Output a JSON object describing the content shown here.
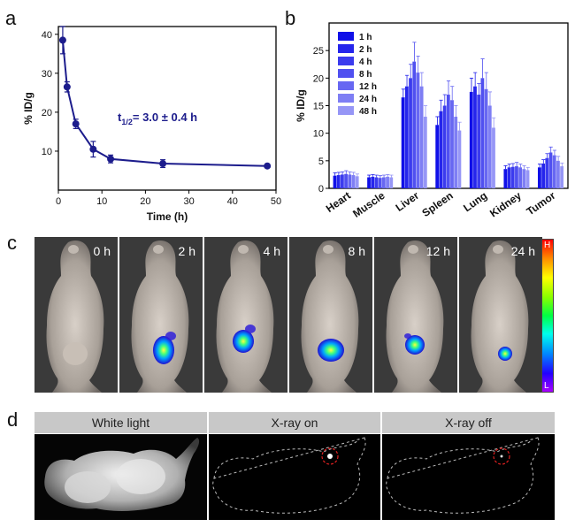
{
  "panels": {
    "a": "a",
    "b": "b",
    "c": "c",
    "d": "d"
  },
  "chart_data": [
    {
      "type": "line",
      "x": [
        1,
        2,
        4,
        8,
        12,
        24,
        48
      ],
      "series": [
        {
          "values": [
            38.5,
            26.5,
            17.0,
            10.5,
            8.0,
            6.8,
            6.2
          ],
          "error": [
            3.5,
            1.3,
            1.2,
            2.0,
            1.0,
            1.0,
            0.4
          ]
        }
      ],
      "annotation_main": "t",
      "annotation_sub": "1/2",
      "annotation_rest": "= 3.0 ± 0.4 h",
      "xlabel": "Time (h)",
      "ylabel": "% ID/g",
      "xlim": [
        0,
        50
      ],
      "ylim": [
        0,
        42
      ],
      "xticks": [
        0,
        10,
        20,
        30,
        40,
        50
      ],
      "yticks": [
        10,
        20,
        30,
        40
      ],
      "color": "#1c1c8c"
    },
    {
      "type": "bar",
      "categories": [
        "Heart",
        "Muscle",
        "Liver",
        "Spleen",
        "Lung",
        "Kidney",
        "Tumor"
      ],
      "series": [
        {
          "name": "1 h",
          "values": [
            2.3,
            2.0,
            16.5,
            11.5,
            17.5,
            3.5,
            3.8
          ],
          "error": [
            0.5,
            0.4,
            1.5,
            1.5,
            2.5,
            0.6,
            0.6
          ]
        },
        {
          "name": "2 h",
          "values": [
            2.4,
            2.1,
            18.5,
            14.0,
            18.5,
            3.8,
            4.5
          ],
          "error": [
            0.5,
            0.4,
            2.0,
            2.0,
            2.5,
            0.6,
            0.7
          ]
        },
        {
          "name": "4 h",
          "values": [
            2.5,
            2.0,
            20.0,
            15.0,
            17.0,
            3.9,
            5.5
          ],
          "error": [
            0.5,
            0.4,
            2.5,
            2.0,
            2.0,
            0.6,
            0.8
          ]
        },
        {
          "name": "8 h",
          "values": [
            2.6,
            1.9,
            23.0,
            17.0,
            20.0,
            4.0,
            6.5
          ],
          "error": [
            0.6,
            0.4,
            3.5,
            2.5,
            3.5,
            0.7,
            1.0
          ]
        },
        {
          "name": "12 h",
          "values": [
            2.5,
            2.0,
            21.0,
            16.0,
            18.0,
            3.8,
            6.0
          ],
          "error": [
            0.5,
            0.4,
            3.0,
            2.5,
            3.0,
            0.6,
            0.9
          ]
        },
        {
          "name": "24 h",
          "values": [
            2.4,
            2.1,
            18.5,
            13.0,
            15.0,
            3.5,
            5.0
          ],
          "error": [
            0.5,
            0.4,
            2.5,
            2.0,
            2.5,
            0.6,
            0.8
          ]
        },
        {
          "name": "48 h",
          "values": [
            2.2,
            2.0,
            13.0,
            10.5,
            11.0,
            3.3,
            4.0
          ],
          "error": [
            0.4,
            0.4,
            2.0,
            1.5,
            1.8,
            0.5,
            0.6
          ]
        }
      ],
      "colors": [
        "#1010e8",
        "#2525ec",
        "#3b3bee",
        "#5050f0",
        "#6767f2",
        "#7e7ef4",
        "#9696f6"
      ],
      "ylabel": "% ID/g",
      "ylim": [
        0,
        30
      ],
      "yticks": [
        0,
        5,
        10,
        15,
        20,
        25
      ],
      "legend_position": "top-left"
    }
  ],
  "imaging": {
    "timepoints": [
      "0 h",
      "2 h",
      "4 h",
      "8 h",
      "12 h",
      "24 h"
    ],
    "colorbar_high": "H",
    "colorbar_low": "L",
    "xray_headers": [
      "White light",
      "X-ray on",
      "X-ray off"
    ]
  }
}
